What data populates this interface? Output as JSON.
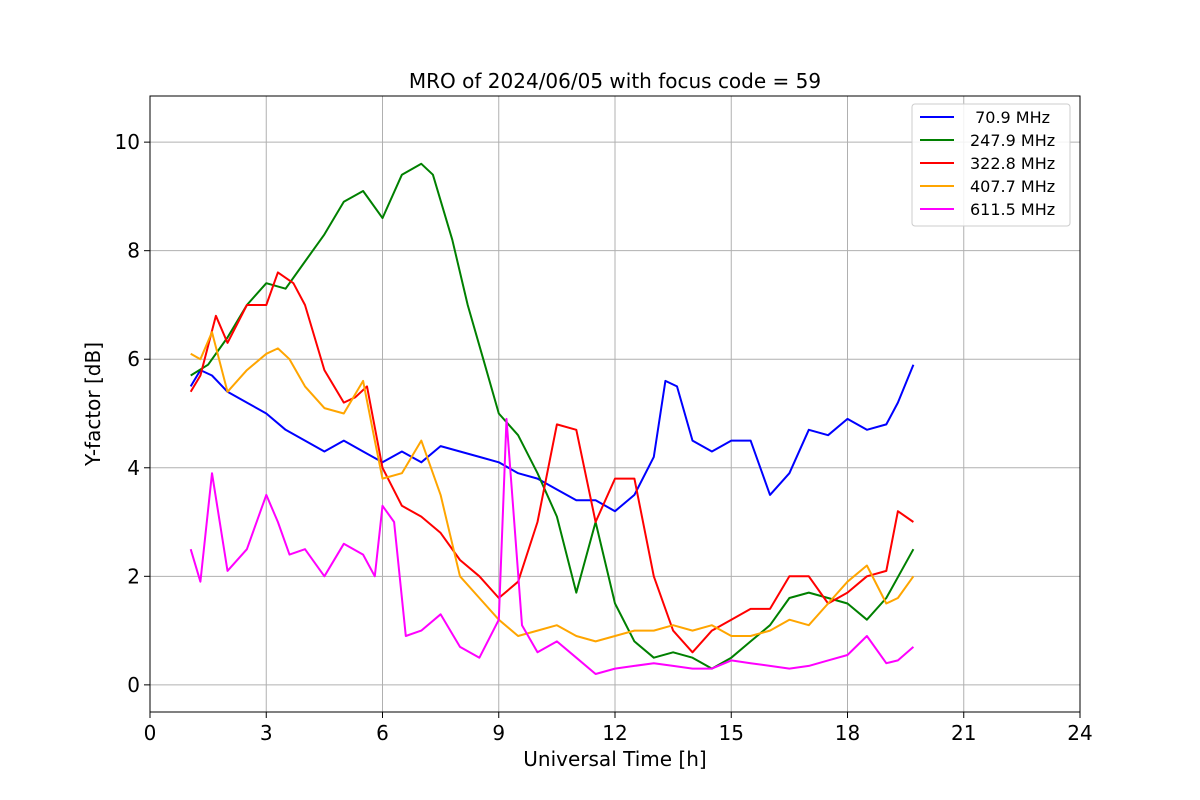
{
  "chart_data": {
    "type": "line",
    "title": "MRO of 2024/06/05 with focus code = 59",
    "xlabel": "Universal Time [h]",
    "ylabel": "Y-factor [dB]",
    "xlim": [
      0,
      24
    ],
    "ylim": [
      -0.5,
      10.85
    ],
    "xticks": [
      0,
      3,
      6,
      9,
      12,
      15,
      18,
      21,
      24
    ],
    "yticks": [
      0,
      2,
      4,
      6,
      8,
      10
    ],
    "grid": true,
    "legend_position": "top-right",
    "series": [
      {
        "name": " 70.9 MHz",
        "color": "#0000ff",
        "x": [
          1.05,
          1.3,
          1.6,
          2.0,
          2.5,
          3.0,
          3.5,
          4.0,
          4.5,
          5.0,
          5.5,
          6.0,
          6.5,
          7.0,
          7.5,
          8.0,
          8.5,
          9.0,
          9.5,
          10.0,
          10.5,
          11.0,
          11.5,
          12.0,
          12.5,
          13.0,
          13.3,
          13.6,
          14.0,
          14.5,
          15.0,
          15.5,
          16.0,
          16.5,
          17.0,
          17.5,
          18.0,
          18.5,
          19.0,
          19.3,
          19.7
        ],
        "y": [
          5.5,
          5.8,
          5.7,
          5.4,
          5.2,
          5.0,
          4.7,
          4.5,
          4.3,
          4.5,
          4.3,
          4.1,
          4.3,
          4.1,
          4.4,
          4.3,
          4.2,
          4.1,
          3.9,
          3.8,
          3.6,
          3.4,
          3.4,
          3.2,
          3.5,
          4.2,
          5.6,
          5.5,
          4.5,
          4.3,
          4.5,
          4.5,
          3.5,
          3.9,
          4.7,
          4.6,
          4.9,
          4.7,
          4.8,
          5.2,
          5.9
        ]
      },
      {
        "name": "247.9 MHz",
        "color": "#008000",
        "x": [
          1.05,
          1.5,
          2.0,
          2.5,
          3.0,
          3.5,
          4.0,
          4.5,
          5.0,
          5.5,
          6.0,
          6.5,
          7.0,
          7.3,
          7.8,
          8.2,
          8.6,
          9.0,
          9.5,
          10.0,
          10.5,
          11.0,
          11.5,
          12.0,
          12.5,
          13.0,
          13.5,
          14.0,
          14.5,
          15.0,
          15.5,
          16.0,
          16.5,
          17.0,
          17.5,
          18.0,
          18.5,
          19.0,
          19.7
        ],
        "y": [
          5.7,
          5.9,
          6.4,
          7.0,
          7.4,
          7.3,
          7.8,
          8.3,
          8.9,
          9.1,
          8.6,
          9.4,
          9.6,
          9.4,
          8.2,
          7.0,
          6.0,
          5.0,
          4.6,
          3.9,
          3.1,
          1.7,
          3.0,
          1.5,
          0.8,
          0.5,
          0.6,
          0.5,
          0.3,
          0.5,
          0.8,
          1.1,
          1.6,
          1.7,
          1.6,
          1.5,
          1.2,
          1.6,
          2.5
        ]
      },
      {
        "name": "322.8 MHz",
        "color": "#ff0000",
        "x": [
          1.05,
          1.3,
          1.7,
          2.0,
          2.5,
          3.0,
          3.3,
          3.7,
          4.0,
          4.5,
          5.0,
          5.3,
          5.6,
          6.0,
          6.5,
          7.0,
          7.5,
          8.0,
          8.5,
          9.0,
          9.5,
          10.0,
          10.5,
          11.0,
          11.5,
          12.0,
          12.5,
          13.0,
          13.5,
          14.0,
          14.5,
          15.0,
          15.5,
          16.0,
          16.5,
          17.0,
          17.5,
          18.0,
          18.5,
          19.0,
          19.3,
          19.7
        ],
        "y": [
          5.4,
          5.7,
          6.8,
          6.3,
          7.0,
          7.0,
          7.6,
          7.4,
          7.0,
          5.8,
          5.2,
          5.3,
          5.5,
          4.0,
          3.3,
          3.1,
          2.8,
          2.3,
          2.0,
          1.6,
          1.9,
          3.0,
          4.8,
          4.7,
          3.0,
          3.8,
          3.8,
          2.0,
          1.0,
          0.6,
          1.0,
          1.2,
          1.4,
          1.4,
          2.0,
          2.0,
          1.5,
          1.7,
          2.0,
          2.1,
          3.2,
          3.0
        ]
      },
      {
        "name": "407.7 MHz",
        "color": "#ffa500",
        "x": [
          1.05,
          1.3,
          1.6,
          2.0,
          2.5,
          3.0,
          3.3,
          3.6,
          4.0,
          4.5,
          5.0,
          5.5,
          5.8,
          6.0,
          6.5,
          7.0,
          7.5,
          8.0,
          8.5,
          9.0,
          9.5,
          10.0,
          10.5,
          11.0,
          11.5,
          12.0,
          12.5,
          13.0,
          13.5,
          14.0,
          14.5,
          15.0,
          15.5,
          16.0,
          16.5,
          17.0,
          17.5,
          18.0,
          18.5,
          19.0,
          19.3,
          19.7
        ],
        "y": [
          6.1,
          6.0,
          6.5,
          5.4,
          5.8,
          6.1,
          6.2,
          6.0,
          5.5,
          5.1,
          5.0,
          5.6,
          4.5,
          3.8,
          3.9,
          4.5,
          3.5,
          2.0,
          1.6,
          1.2,
          0.9,
          1.0,
          1.1,
          0.9,
          0.8,
          0.9,
          1.0,
          1.0,
          1.1,
          1.0,
          1.1,
          0.9,
          0.9,
          1.0,
          1.2,
          1.1,
          1.5,
          1.9,
          2.2,
          1.5,
          1.6,
          2.0
        ]
      },
      {
        "name": "611.5 MHz",
        "color": "#ff00ff",
        "x": [
          1.05,
          1.3,
          1.6,
          2.0,
          2.5,
          3.0,
          3.3,
          3.6,
          4.0,
          4.5,
          5.0,
          5.5,
          5.8,
          6.0,
          6.3,
          6.6,
          7.0,
          7.5,
          8.0,
          8.5,
          9.0,
          9.2,
          9.6,
          10.0,
          10.5,
          11.0,
          11.5,
          12.0,
          12.5,
          13.0,
          13.5,
          14.0,
          14.5,
          15.0,
          15.5,
          16.0,
          16.5,
          17.0,
          17.5,
          18.0,
          18.5,
          19.0,
          19.3,
          19.7
        ],
        "y": [
          2.5,
          1.9,
          3.9,
          2.1,
          2.5,
          3.5,
          3.0,
          2.4,
          2.5,
          2.0,
          2.6,
          2.4,
          2.0,
          3.3,
          3.0,
          0.9,
          1.0,
          1.3,
          0.7,
          0.5,
          1.2,
          4.9,
          1.1,
          0.6,
          0.8,
          0.5,
          0.2,
          0.3,
          0.35,
          0.4,
          0.35,
          0.3,
          0.3,
          0.45,
          0.4,
          0.35,
          0.3,
          0.35,
          0.45,
          0.55,
          0.9,
          0.4,
          0.45,
          0.7
        ]
      }
    ]
  }
}
